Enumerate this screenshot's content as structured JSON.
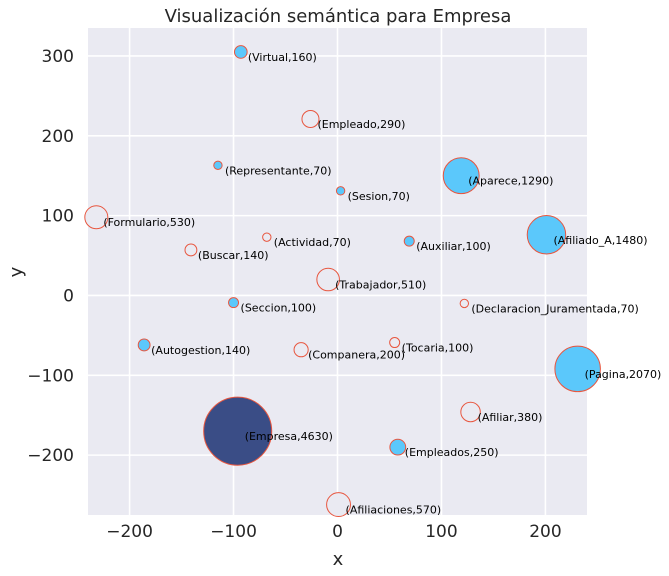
{
  "colors": {
    "background": "#EAEAF2",
    "grid": "#ffffff",
    "edge": "#E8563F",
    "hollow_fill": "#EAEAF2",
    "blue_fill": "#5BC8FB",
    "dark_fill": "#3A4D86"
  },
  "chart_data": {
    "type": "scatter",
    "title": "Visualización semántica para Empresa",
    "xlabel": "x",
    "ylabel": "y",
    "xlim": [
      -240,
      240
    ],
    "ylim": [
      -275,
      335
    ],
    "xticks": [
      -200,
      -100,
      0,
      100,
      200
    ],
    "yticks": [
      300,
      200,
      100,
      0,
      -100,
      -200
    ],
    "grid": true,
    "points": [
      {
        "word": "Virtual",
        "count": 160,
        "x": -93,
        "y": 305,
        "style": "blue"
      },
      {
        "word": "Empleado",
        "count": 290,
        "x": -26,
        "y": 221,
        "style": "hollow"
      },
      {
        "word": "Representante",
        "count": 70,
        "x": -115,
        "y": 163,
        "style": "blue"
      },
      {
        "word": "Sesion",
        "count": 70,
        "x": 3,
        "y": 131,
        "style": "blue"
      },
      {
        "word": "Aparece",
        "count": 1290,
        "x": 119,
        "y": 150,
        "style": "blue"
      },
      {
        "word": "Formulario",
        "count": 530,
        "x": -232,
        "y": 98,
        "style": "hollow"
      },
      {
        "word": "Afiliado_A",
        "count": 1480,
        "x": 201,
        "y": 76,
        "style": "blue"
      },
      {
        "word": "Actividad",
        "count": 70,
        "x": -68,
        "y": 73,
        "style": "hollow"
      },
      {
        "word": "Auxiliar",
        "count": 100,
        "x": 69,
        "y": 68,
        "style": "blue"
      },
      {
        "word": "Buscar",
        "count": 140,
        "x": -141,
        "y": 57,
        "style": "hollow"
      },
      {
        "word": "Trabajador",
        "count": 510,
        "x": -9,
        "y": 20,
        "style": "hollow"
      },
      {
        "word": "Seccion",
        "count": 100,
        "x": -100,
        "y": -9,
        "style": "blue"
      },
      {
        "word": "Declaracion_Juramentada",
        "count": 70,
        "x": 122,
        "y": -10,
        "style": "hollow"
      },
      {
        "word": "Autogestion",
        "count": 140,
        "x": -186,
        "y": -62,
        "style": "blue"
      },
      {
        "word": "Companera",
        "count": 200,
        "x": -35,
        "y": -68,
        "style": "hollow"
      },
      {
        "word": "Tocaria",
        "count": 100,
        "x": 55,
        "y": -59,
        "style": "hollow"
      },
      {
        "word": "Pagina",
        "count": 2070,
        "x": 231,
        "y": -92,
        "style": "blue"
      },
      {
        "word": "Empresa",
        "count": 4630,
        "x": -96,
        "y": -170,
        "style": "dark"
      },
      {
        "word": "Afiliar",
        "count": 380,
        "x": 128,
        "y": -146,
        "style": "hollow"
      },
      {
        "word": "Empleados",
        "count": 250,
        "x": 58,
        "y": -190,
        "style": "blue"
      },
      {
        "word": "Afiliaciones",
        "count": 570,
        "x": 1,
        "y": -262,
        "style": "hollow"
      }
    ]
  }
}
